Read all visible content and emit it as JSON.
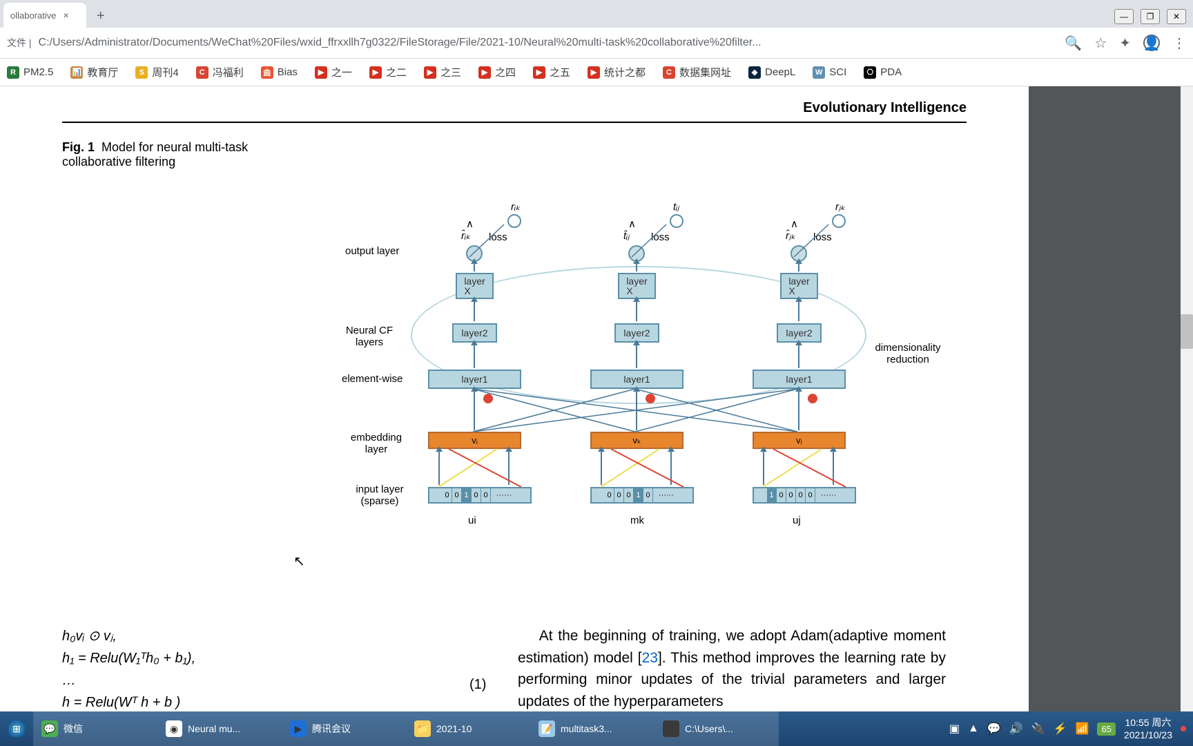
{
  "browser": {
    "tab_title": "ollaborative",
    "url": "C:/Users/Administrator/Documents/WeChat%20Files/wxid_ffrxxllh7g0322/FileStorage/File/2021-10/Neural%20multi-task%20collaborative%20filter...",
    "url_prefix": "文件 |"
  },
  "bookmarks": [
    {
      "label": "PM2.5",
      "icon_bg": "#2a7a3a",
      "icon_text": "R"
    },
    {
      "label": "教育厅",
      "icon_bg": "#c84",
      "icon_text": "📊"
    },
    {
      "label": "周刊4",
      "icon_bg": "#e8b020",
      "icon_text": "S"
    },
    {
      "label": "冯福利",
      "icon_bg": "#d84530",
      "icon_text": "C"
    },
    {
      "label": "Bias",
      "icon_bg": "#e85530",
      "icon_text": "曲"
    },
    {
      "label": "之一",
      "icon_bg": "#d43020",
      "icon_text": "▶"
    },
    {
      "label": "之二",
      "icon_bg": "#d43020",
      "icon_text": "▶"
    },
    {
      "label": "之三",
      "icon_bg": "#d43020",
      "icon_text": "▶"
    },
    {
      "label": "之四",
      "icon_bg": "#d43020",
      "icon_text": "▶"
    },
    {
      "label": "之五",
      "icon_bg": "#d43020",
      "icon_text": "▶"
    },
    {
      "label": "统计之都",
      "icon_bg": "#d43020",
      "icon_text": "▶"
    },
    {
      "label": "数据集网址",
      "icon_bg": "#d84530",
      "icon_text": "C"
    },
    {
      "label": "DeepL",
      "icon_bg": "#0a2540",
      "icon_text": "◆"
    },
    {
      "label": "SCI",
      "icon_bg": "#6090b0",
      "icon_text": "W"
    },
    {
      "label": "PDA",
      "icon_bg": "#000",
      "icon_text": "⎔"
    }
  ],
  "pdf": {
    "journal": "Evolutionary Intelligence",
    "fig_label": "Fig. 1",
    "fig_caption": "Model for neural multi-task collaborative filtering",
    "labels": {
      "output": "output layer",
      "neural_cf": "Neural CF layers",
      "element": "element-wise",
      "embedding": "embedding layer",
      "input": "input layer (sparse)",
      "dim_red": "dimensionality reduction",
      "loss": "loss",
      "layer_x": "layer X",
      "layer2": "layer2",
      "layer1": "layer1",
      "ui": "ui",
      "mk": "mk",
      "uj": "uj",
      "vi": "vᵢ",
      "vk": "vₖ",
      "vj": "vⱼ",
      "rik_hat": "r̂ᵢₖ",
      "tij_hat": "t̂ᵢⱼ",
      "rjk_hat": "r̂ⱼₖ",
      "rik": "rᵢₖ",
      "tij": "tᵢⱼ",
      "rjk": "rⱼₖ",
      "hat": "∧"
    },
    "input_cells_1": [
      "0",
      "0",
      "1",
      "0",
      "0"
    ],
    "input_cells_2": [
      "0",
      "0",
      "0",
      "1",
      "0"
    ],
    "input_cells_3": [
      "1",
      "0",
      "0",
      "0",
      "0"
    ],
    "equations": {
      "line1": "h₀vᵢ ⊙ vⱼ,",
      "line2": "h₁ = Relu(W₁ᵀh₀ + b₁),",
      "line3": "…",
      "line4": "h      = Relu(Wᵀ    h        + b      )",
      "eq_num": "(1)"
    },
    "paragraph_text": "At the beginning of training, we adopt Adam(adaptive moment estimation) model [",
    "paragraph_ref": "23",
    "paragraph_text2": "]. This method improves the learning rate by performing minor updates of the trivial parameters and larger updates of the hyperparameters"
  },
  "taskbar": {
    "items": [
      {
        "label": "微信",
        "icon": "💬",
        "bg": "#4caf50"
      },
      {
        "label": "Neural mu...",
        "icon": "◉",
        "bg": "#fff"
      },
      {
        "label": "腾讯会议",
        "icon": "▶",
        "bg": "#1e6fd8"
      },
      {
        "label": "2021-10",
        "icon": "📁",
        "bg": "#f8d060"
      },
      {
        "label": "multitask3...",
        "icon": "📝",
        "bg": "#9ac8e8"
      },
      {
        "label": "C:\\Users\\...",
        "icon": "≡",
        "bg": "#3a3a3a"
      }
    ],
    "battery": "65",
    "time": "10:55 周六",
    "date": "2021/10/23"
  }
}
